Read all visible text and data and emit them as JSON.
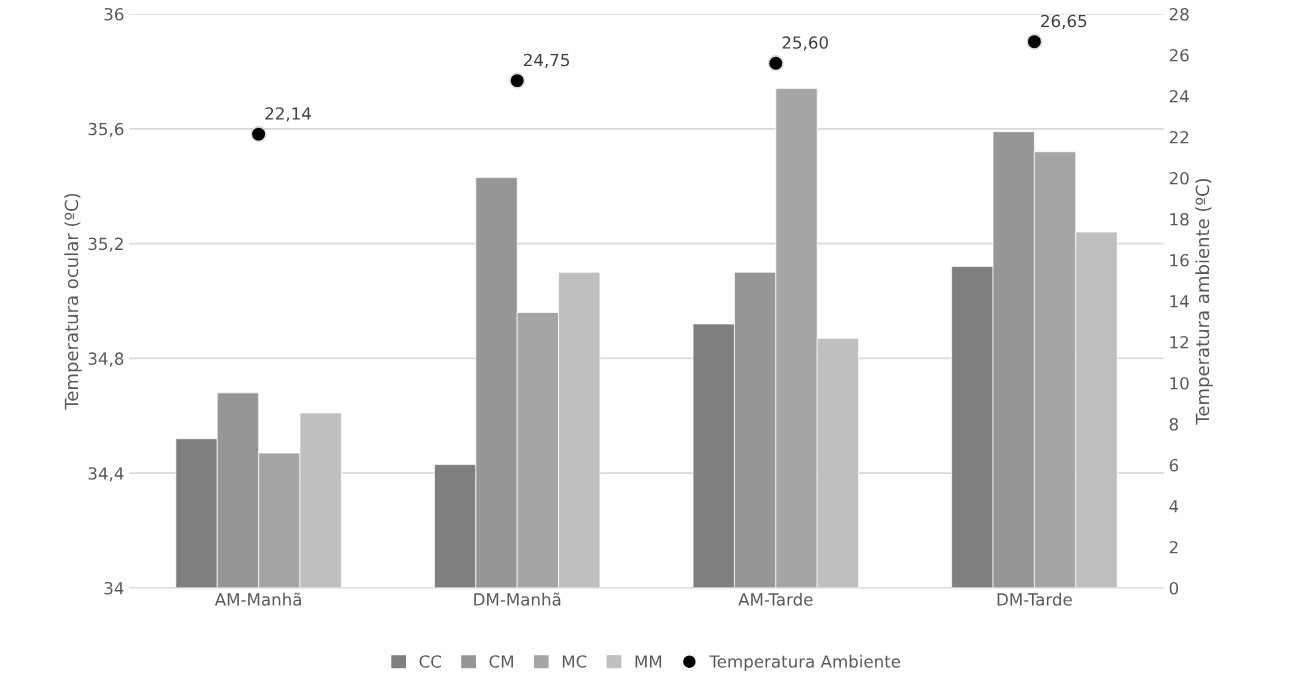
{
  "chart_data": {
    "type": "bar",
    "xlabel": null,
    "ylabel": "Temperatura ocular (ºC)",
    "y2label": "Temperatura ambiente (ºC)",
    "categories": [
      "AM-Manhã",
      "DM-Manhã",
      "AM-Tarde",
      "DM-Tarde"
    ],
    "series": [
      {
        "name": "CC",
        "color": "#7f7f7f",
        "values": [
          34.52,
          34.43,
          34.92,
          35.12
        ]
      },
      {
        "name": "CM",
        "color": "#969696",
        "values": [
          34.68,
          35.43,
          35.1,
          35.59
        ]
      },
      {
        "name": "MC",
        "color": "#a5a5a5",
        "values": [
          34.47,
          34.96,
          35.74,
          35.52
        ]
      },
      {
        "name": "MM",
        "color": "#bfbfbf",
        "values": [
          34.61,
          35.1,
          34.87,
          35.24
        ]
      },
      {
        "name": "Temperatura Ambiente",
        "type": "scatter",
        "axis": "y2",
        "color": "#000000",
        "marker": "circle",
        "values": [
          22.14,
          24.75,
          25.6,
          26.65
        ],
        "value_labels": [
          "22,14",
          "24,75",
          "25,60",
          "26,65"
        ]
      }
    ],
    "ylim": [
      34,
      36
    ],
    "yticks": [
      34,
      {
        "value": 34.4,
        "label": "34,4"
      },
      {
        "value": 34.8,
        "label": "34,8"
      },
      {
        "value": 35.2,
        "label": "35,2"
      },
      {
        "value": 35.6,
        "label": "35,6"
      },
      36
    ],
    "y2lim": [
      0,
      28
    ],
    "y2ticks": [
      0,
      2,
      4,
      6,
      8,
      10,
      12,
      14,
      16,
      18,
      20,
      22,
      24,
      26,
      28
    ],
    "grid": "y",
    "legend": "bottom"
  }
}
